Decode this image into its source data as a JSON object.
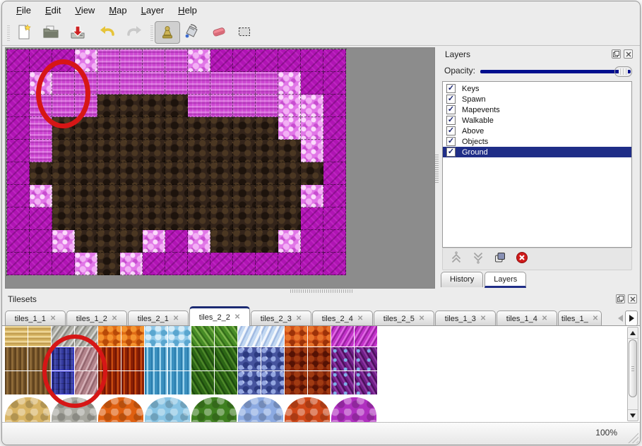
{
  "menubar": {
    "items": [
      "File",
      "Edit",
      "View",
      "Map",
      "Layer",
      "Help"
    ]
  },
  "toolbar": {
    "buttons": [
      {
        "name": "new-map",
        "icon": "new-document-icon",
        "active": false
      },
      {
        "name": "open-map",
        "icon": "open-folder-icon",
        "active": false
      },
      {
        "name": "save-map",
        "icon": "save-icon",
        "active": false
      },
      {
        "name": "undo",
        "icon": "undo-arrow-icon",
        "active": false
      },
      {
        "name": "redo",
        "icon": "redo-arrow-icon",
        "active": false
      },
      {
        "name": "stamp-brush",
        "icon": "stamp-icon",
        "active": true
      },
      {
        "name": "bucket-fill",
        "icon": "paint-bucket-icon",
        "active": false
      },
      {
        "name": "eraser",
        "icon": "eraser-icon",
        "active": false
      },
      {
        "name": "rectangular-select",
        "icon": "selection-rectangle-icon",
        "active": false
      }
    ]
  },
  "map_view": {
    "columns": 15,
    "rows": 10,
    "tile_legend": {
      "M": "dark-magenta-scale",
      "K": "pink-knit",
      "P": "light-pink-tuft",
      "B": "dark-brown-rock"
    },
    "tiles": [
      "MMMPKKKKPMMMMMM",
      "MPKKKKKKKKKKPMM",
      "MKKKBBBBKKKKPPM",
      "MKBBBBBBBBBBPPM",
      "MKBBBBBBBBBBBPM",
      "MBBBBBBBBBBBBBM",
      "MPBBBBBBBBBBBPM",
      "MMBBBBBBBBBBBMM",
      "MMPBBBPMPBBBPMM",
      "MMMPBPMMMMMMMMM"
    ],
    "annotation": {
      "shape": "red-circle",
      "color": "#d61616"
    }
  },
  "layers_panel": {
    "title": "Layers",
    "titlebar_icons": [
      "float-panel-icon",
      "close-panel-icon"
    ],
    "opacity_label": "Opacity:",
    "opacity_percent": 100,
    "layers": [
      {
        "name": "Keys",
        "visible": true,
        "selected": false
      },
      {
        "name": "Spawn",
        "visible": true,
        "selected": false
      },
      {
        "name": "Mapevents",
        "visible": true,
        "selected": false
      },
      {
        "name": "Walkable",
        "visible": true,
        "selected": false
      },
      {
        "name": "Above",
        "visible": true,
        "selected": false
      },
      {
        "name": "Objects",
        "visible": true,
        "selected": false
      },
      {
        "name": "Ground",
        "visible": true,
        "selected": true
      }
    ],
    "buttons": [
      {
        "name": "raise-layer",
        "icon": "chevron-up-icon"
      },
      {
        "name": "lower-layer",
        "icon": "chevron-down-icon"
      },
      {
        "name": "duplicate-layer",
        "icon": "duplicate-icon"
      },
      {
        "name": "delete-layer",
        "icon": "delete-circle-icon"
      }
    ],
    "tabs": [
      {
        "label": "History",
        "active": false
      },
      {
        "label": "Layers",
        "active": true
      }
    ]
  },
  "tilesets_panel": {
    "title": "Tilesets",
    "titlebar_icons": [
      "float-panel-icon",
      "close-panel-icon"
    ],
    "tabs": [
      {
        "label": "tiles_1_1",
        "active": false,
        "truncated": false
      },
      {
        "label": "tiles_1_2",
        "active": false,
        "truncated": false
      },
      {
        "label": "tiles_2_1",
        "active": false,
        "truncated": false
      },
      {
        "label": "tiles_2_2",
        "active": true,
        "truncated": false
      },
      {
        "label": "tiles_2_3",
        "active": false,
        "truncated": false
      },
      {
        "label": "tiles_2_4",
        "active": false,
        "truncated": false
      },
      {
        "label": "tiles_2_5",
        "active": false,
        "truncated": false
      },
      {
        "label": "tiles_1_3",
        "active": false,
        "truncated": false
      },
      {
        "label": "tiles_1_4",
        "active": false,
        "truncated": false
      },
      {
        "label": "tiles_1_",
        "active": false,
        "truncated": true
      }
    ],
    "tab_close_glyph": "✕",
    "tile_groups": [
      "straw",
      "stone",
      "lava",
      "water",
      "vines",
      "ice",
      "ember",
      "web"
    ],
    "grid_columns": 16,
    "grid_row_variants": [
      "a",
      "b",
      "b"
    ],
    "selection": {
      "column": 2,
      "rows": [
        1,
        2
      ],
      "description": "two blue-highlighted selected tiles"
    },
    "annotation": {
      "shape": "red-circle",
      "color": "#d61616"
    }
  },
  "statusbar": {
    "zoom_level": "100%"
  },
  "colors": {
    "selection_navy": "#1f2d87",
    "annotation_red": "#d61616",
    "map_magenta": "#b014b4",
    "map_pink_knit": "#cd46d2",
    "map_pink_light": "#e176e7",
    "map_brown": "#33241a",
    "canvas_gray": "#8c8c8c",
    "opacity_track_blue": "#000f8e"
  }
}
